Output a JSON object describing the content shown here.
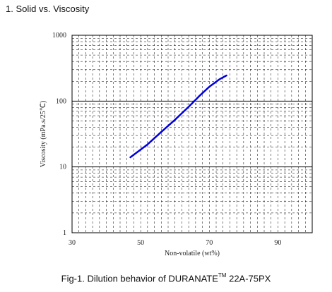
{
  "section_title": "1. Solid vs. Viscosity",
  "caption": {
    "prefix": "Fig-1.   Dilution behavior of DURANATE",
    "superscript": "TM",
    "suffix": " 22A-75PX"
  },
  "chart_data": {
    "type": "line",
    "title": "",
    "xlabel": "Non-volatile (wt%)",
    "ylabel": "Viscosity (mPa.s/25℃)",
    "xlim": [
      30,
      100
    ],
    "ylim": [
      1,
      1000
    ],
    "y_scale": "log",
    "x_ticks": [
      30,
      50,
      70,
      90
    ],
    "y_ticks": [
      1,
      10,
      100,
      1000
    ],
    "grid": "dashed vertical every 2 wt%, dashed horizontal log minors, solid at decades",
    "series": [
      {
        "color": "#0000dd",
        "x": [
          47,
          52,
          56,
          60,
          64,
          67,
          70,
          73,
          75
        ],
        "y": [
          14,
          22,
          34,
          52,
          82,
          118,
          165,
          215,
          245
        ]
      }
    ]
  }
}
